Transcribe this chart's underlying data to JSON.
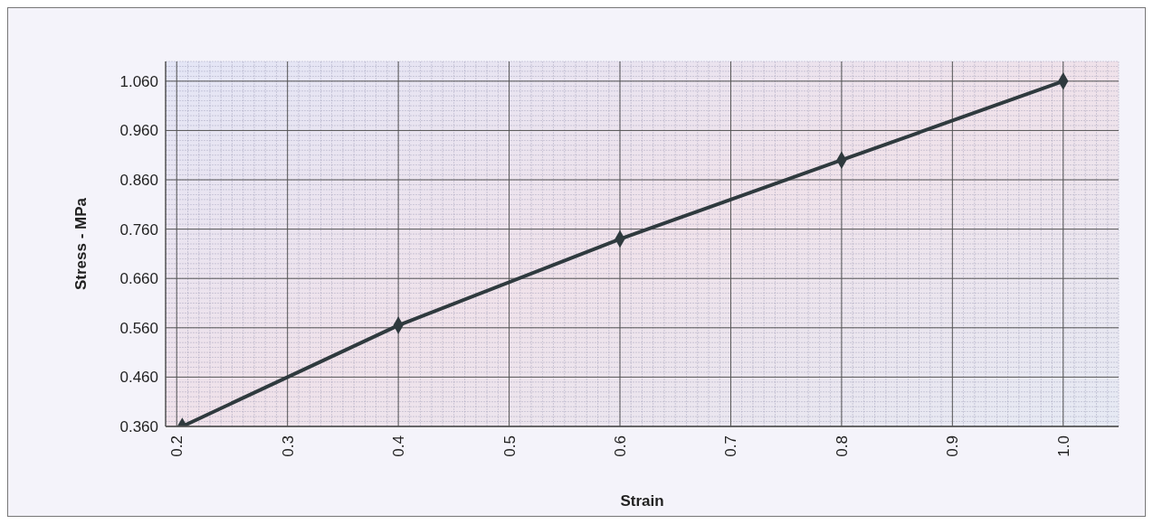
{
  "chart_data": {
    "type": "line",
    "xlabel": "Strain",
    "ylabel": "Stress - MPa",
    "x": [
      0.205,
      0.4,
      0.6,
      0.8,
      1.0
    ],
    "series": [
      {
        "color": "#2f3a3e",
        "values": [
          0.36,
          0.565,
          0.74,
          0.9,
          1.06
        ]
      }
    ],
    "xlim": [
      0.19,
      1.05
    ],
    "ylim": [
      0.36,
      1.1
    ],
    "xticks": [
      0.2,
      0.3,
      0.4,
      0.5,
      0.6,
      0.7,
      0.8,
      0.9,
      {
        "value": 1.0,
        "label": "1.0"
      }
    ],
    "yticks": [
      {
        "value": 0.36,
        "label": "0.360"
      },
      {
        "value": 0.46,
        "label": "0.460"
      },
      {
        "value": 0.56,
        "label": "0.560"
      },
      {
        "value": 0.66,
        "label": "0.660"
      },
      {
        "value": 0.76,
        "label": "0.760"
      },
      {
        "value": 0.86,
        "label": "0.860"
      },
      {
        "value": 0.96,
        "label": "0.960"
      },
      {
        "value": 1.06,
        "label": "1.060"
      }
    ],
    "grid": true,
    "marker": "diamond",
    "line_style": "solid"
  }
}
